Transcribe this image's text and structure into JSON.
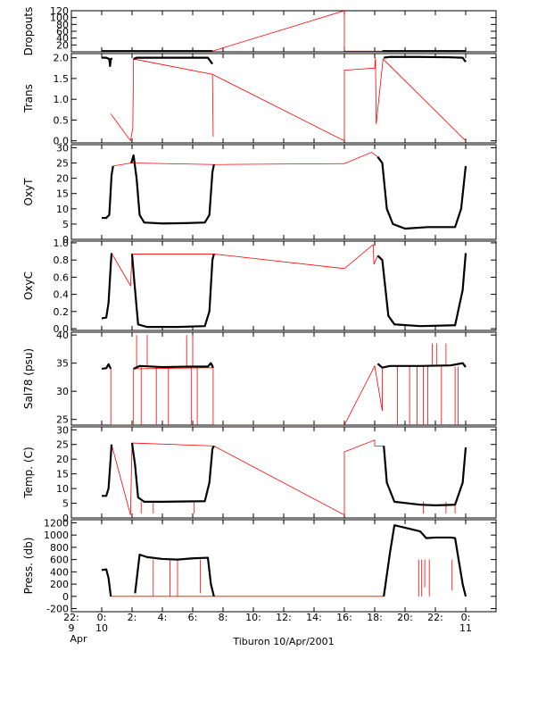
{
  "chart_data": {
    "type": "line",
    "title": "",
    "xlabel": "Tiburon 10/Apr/2001",
    "x_tick_hours": [
      -2,
      0,
      2,
      4,
      6,
      8,
      10,
      12,
      14,
      16,
      18,
      20,
      22,
      24
    ],
    "x_tick_labels": [
      [
        "22:",
        "9",
        "Apr"
      ],
      [
        "0:",
        "10",
        ""
      ],
      [
        "2:",
        "",
        ""
      ],
      [
        "4:",
        "",
        ""
      ],
      [
        "6:",
        "",
        ""
      ],
      [
        "8:",
        "",
        ""
      ],
      [
        "10:",
        "",
        ""
      ],
      [
        "12:",
        "",
        ""
      ],
      [
        "14:",
        "",
        ""
      ],
      [
        "16:",
        "",
        ""
      ],
      [
        "18:",
        "",
        ""
      ],
      [
        "20:",
        "",
        ""
      ],
      [
        "22:",
        "",
        ""
      ],
      [
        "0:",
        "11",
        ""
      ]
    ],
    "xlim_hours": [
      -2,
      26
    ],
    "colors": {
      "black_series": "#000000",
      "red_series": "#ff0000",
      "axes": "#000000"
    },
    "panels": [
      {
        "id": "dropouts",
        "ylabel": "Dropouts",
        "yticks": [
          20,
          40,
          60,
          80,
          100,
          120
        ],
        "ytick_labels": [
          "20",
          "40",
          "60",
          "80",
          "100",
          "120"
        ],
        "ylim": [
          0,
          120
        ],
        "black": [
          [
            0,
            2
          ],
          [
            2,
            2
          ],
          [
            2,
            2
          ],
          [
            7.3,
            2
          ],
          [
            18.5,
            2
          ],
          [
            24,
            2
          ]
        ],
        "black_segments": [
          [
            [
              0,
              2
            ],
            [
              7.3,
              2
            ]
          ],
          [
            [
              18.5,
              2
            ],
            [
              24,
              2
            ]
          ]
        ],
        "red": [
          [
            0,
            2
          ],
          [
            7.3,
            2
          ],
          [
            16,
            120
          ],
          [
            16,
            2
          ],
          [
            24,
            2
          ]
        ]
      },
      {
        "id": "trans",
        "ylabel": "Trans",
        "yticks": [
          0.0,
          0.5,
          1.0,
          1.5,
          2.0
        ],
        "ytick_labels": [
          "0.0",
          "0.5",
          "1.0",
          "1.5",
          "2.0"
        ],
        "ylim": [
          -0.05,
          2.1
        ],
        "black_segments": [
          [
            [
              0,
              2.0
            ],
            [
              0.3,
              2.0
            ],
            [
              0.5,
              1.97
            ],
            [
              0.55,
              1.8
            ],
            [
              0.6,
              1.97
            ],
            [
              0.7,
              1.98
            ]
          ],
          [
            [
              2.1,
              1.97
            ],
            [
              2.3,
              2.0
            ],
            [
              4,
              2.0
            ],
            [
              6,
              2.0
            ],
            [
              7.0,
              2.0
            ],
            [
              7.2,
              1.9
            ],
            [
              7.3,
              1.85
            ]
          ],
          [
            [
              18.6,
              2.0
            ],
            [
              19,
              2.02
            ],
            [
              21,
              2.02
            ],
            [
              23,
              2.01
            ],
            [
              23.8,
              2.0
            ],
            [
              24,
              1.9
            ]
          ]
        ],
        "red": [
          [
            0.6,
            0.65
          ],
          [
            1.9,
            0.0
          ],
          [
            2.05,
            0.3
          ],
          [
            2.1,
            1.97
          ],
          [
            7.3,
            1.6
          ],
          [
            7.35,
            0.1
          ],
          [
            7.3,
            1.6
          ],
          [
            16,
            0.0
          ],
          [
            16,
            1.7
          ],
          [
            18.0,
            1.75
          ],
          [
            18.05,
            2.0
          ],
          [
            18.1,
            0.4
          ],
          [
            18.55,
            1.97
          ],
          [
            24,
            0.0
          ]
        ]
      },
      {
        "id": "oxyt",
        "ylabel": "OxyT",
        "yticks": [
          0,
          5,
          10,
          15,
          20,
          25,
          30
        ],
        "ytick_labels": [
          "0",
          "5",
          "10",
          "15",
          "20",
          "25",
          "30"
        ],
        "ylim": [
          0,
          31
        ],
        "black_segments": [
          [
            [
              0,
              7
            ],
            [
              0.3,
              7
            ],
            [
              0.5,
              8
            ],
            [
              0.65,
              21
            ],
            [
              0.75,
              24
            ]
          ],
          [
            [
              1.95,
              25
            ],
            [
              2.1,
              27.5
            ],
            [
              2.3,
              20
            ],
            [
              2.5,
              8
            ],
            [
              2.8,
              5.5
            ],
            [
              4,
              5.2
            ],
            [
              5.5,
              5.3
            ],
            [
              6.8,
              5.5
            ],
            [
              7.1,
              8
            ],
            [
              7.3,
              22
            ],
            [
              7.4,
              24.5
            ]
          ],
          [
            [
              18.2,
              27
            ],
            [
              18.5,
              25
            ],
            [
              18.8,
              10
            ],
            [
              19.2,
              5
            ],
            [
              20,
              3.5
            ],
            [
              21.5,
              4
            ],
            [
              22,
              4
            ],
            [
              23.3,
              4
            ],
            [
              23.7,
              10
            ],
            [
              24,
              24
            ]
          ]
        ],
        "red": [
          [
            0.75,
            24
          ],
          [
            1.95,
            25
          ],
          [
            7.4,
            24.5
          ],
          [
            16,
            24.8
          ],
          [
            17.8,
            28.5
          ],
          [
            18.2,
            27
          ]
        ]
      },
      {
        "id": "oxyc",
        "ylabel": "OxyC",
        "yticks": [
          0.0,
          0.2,
          0.4,
          0.6,
          0.8,
          1.0
        ],
        "ytick_labels": [
          "0.0",
          "0.2",
          "0.4",
          "0.6",
          "0.8",
          "1.0"
        ],
        "ylim": [
          -0.02,
          1.02
        ],
        "black_segments": [
          [
            [
              0,
              0.12
            ],
            [
              0.3,
              0.13
            ],
            [
              0.45,
              0.3
            ],
            [
              0.6,
              0.75
            ],
            [
              0.65,
              0.88
            ]
          ],
          [
            [
              2.0,
              0.87
            ],
            [
              2.15,
              0.55
            ],
            [
              2.4,
              0.05
            ],
            [
              3,
              0.02
            ],
            [
              5,
              0.02
            ],
            [
              6.8,
              0.03
            ],
            [
              7.1,
              0.2
            ],
            [
              7.3,
              0.8
            ],
            [
              7.4,
              0.87
            ]
          ],
          [
            [
              18.2,
              0.85
            ],
            [
              18.5,
              0.8
            ],
            [
              18.9,
              0.15
            ],
            [
              19.3,
              0.05
            ],
            [
              21,
              0.03
            ],
            [
              23.3,
              0.04
            ],
            [
              23.8,
              0.45
            ],
            [
              24,
              0.88
            ]
          ]
        ],
        "red": [
          [
            0.65,
            0.88
          ],
          [
            1.9,
            0.5
          ],
          [
            2.0,
            0.87
          ],
          [
            7.4,
            0.87
          ],
          [
            16,
            0.7
          ],
          [
            17.9,
            0.98
          ],
          [
            17.95,
            0.75
          ],
          [
            18.2,
            0.85
          ]
        ]
      },
      {
        "id": "sal78",
        "ylabel": "Sal78 (psu)",
        "yticks": [
          25,
          30,
          35,
          40
        ],
        "ytick_labels": [
          "25",
          "30",
          "35",
          "40"
        ],
        "ylim": [
          24,
          40.5
        ],
        "black_segments": [
          [
            [
              0,
              34
            ],
            [
              0.3,
              34.1
            ],
            [
              0.45,
              34.8
            ],
            [
              0.6,
              34
            ]
          ],
          [
            [
              2.1,
              34
            ],
            [
              2.5,
              34.5
            ],
            [
              4,
              34.3
            ],
            [
              6,
              34.4
            ],
            [
              7.0,
              34.4
            ],
            [
              7.2,
              35
            ],
            [
              7.35,
              34.2
            ]
          ],
          [
            [
              18.2,
              34.9
            ],
            [
              18.5,
              34.2
            ],
            [
              19,
              34.5
            ],
            [
              21,
              34.5
            ],
            [
              23,
              34.6
            ],
            [
              23.8,
              35
            ],
            [
              24,
              34.3
            ]
          ]
        ],
        "red": [
          [
            0.6,
            34
          ],
          [
            0.6,
            24
          ],
          [
            2.1,
            24
          ],
          [
            2.1,
            34
          ],
          [
            7.35,
            34.2
          ],
          [
            7.35,
            24
          ],
          [
            16,
            24
          ],
          [
            18.0,
            34.5
          ],
          [
            18.5,
            26.5
          ],
          [
            18.5,
            34.2
          ]
        ],
        "red_spikes": [
          [
            2.3,
            40
          ],
          [
            2.6,
            24
          ],
          [
            3.0,
            40
          ],
          [
            3.6,
            24
          ],
          [
            4.4,
            24
          ],
          [
            5.6,
            40
          ],
          [
            5.9,
            24
          ],
          [
            6.0,
            40
          ],
          [
            6.3,
            24
          ],
          [
            19.5,
            24
          ],
          [
            20.3,
            24
          ],
          [
            20.8,
            24
          ],
          [
            21.2,
            24
          ],
          [
            21.5,
            24
          ],
          [
            21.8,
            38.5
          ],
          [
            22.1,
            38.5
          ],
          [
            22.4,
            24
          ],
          [
            22.7,
            38.5
          ],
          [
            23.3,
            24
          ],
          [
            23.5,
            24
          ]
        ]
      },
      {
        "id": "temp",
        "ylabel": "Temp. (C)",
        "yticks": [
          0,
          5,
          10,
          15,
          20,
          25,
          30
        ],
        "ytick_labels": [
          "0",
          "5",
          "10",
          "15",
          "20",
          "25",
          "30"
        ],
        "ylim": [
          0,
          31
        ],
        "black_segments": [
          [
            [
              0,
              7.5
            ],
            [
              0.3,
              7.5
            ],
            [
              0.45,
              10
            ],
            [
              0.6,
              21
            ],
            [
              0.65,
              25
            ]
          ],
          [
            [
              2.0,
              25.5
            ],
            [
              2.2,
              18
            ],
            [
              2.4,
              7
            ],
            [
              2.8,
              5.5
            ],
            [
              4,
              5.5
            ],
            [
              6.8,
              5.7
            ],
            [
              7.1,
              12
            ],
            [
              7.3,
              23.5
            ],
            [
              7.4,
              24.5
            ]
          ],
          [
            [
              18.6,
              24.5
            ],
            [
              18.8,
              12
            ],
            [
              19.3,
              5.5
            ],
            [
              21,
              4.5
            ],
            [
              22,
              4.3
            ],
            [
              23.3,
              4.5
            ],
            [
              23.8,
              12
            ],
            [
              24,
              24
            ]
          ]
        ],
        "red": [
          [
            0.65,
            25
          ],
          [
            1.9,
            1.0
          ],
          [
            2.0,
            25.5
          ],
          [
            7.4,
            24.5
          ],
          [
            16,
            1.0
          ],
          [
            16,
            22.5
          ],
          [
            18,
            26.5
          ],
          [
            18,
            24.5
          ],
          [
            18.6,
            24.5
          ]
        ],
        "red_spikes": [
          [
            2.6,
            1.5
          ],
          [
            3.4,
            1.5
          ],
          [
            6.1,
            1.5
          ],
          [
            21.2,
            1.5
          ],
          [
            22.7,
            1.5
          ],
          [
            23.3,
            1.5
          ]
        ]
      },
      {
        "id": "press",
        "ylabel": "Press. (db)",
        "yticks": [
          -200,
          0,
          200,
          400,
          600,
          800,
          1000,
          1200
        ],
        "ytick_labels": [
          "-200",
          "0",
          "200",
          "400",
          "600",
          "800",
          "1000",
          "1200"
        ],
        "ylim": [
          -250,
          1250
        ],
        "black_segments": [
          [
            [
              0,
              430
            ],
            [
              0.3,
              440
            ],
            [
              0.45,
              300
            ],
            [
              0.6,
              0
            ]
          ],
          [
            [
              2.2,
              50
            ],
            [
              2.5,
              680
            ],
            [
              3,
              640
            ],
            [
              4,
              610
            ],
            [
              5,
              600
            ],
            [
              6,
              620
            ],
            [
              7.0,
              630
            ],
            [
              7.2,
              200
            ],
            [
              7.4,
              0
            ]
          ],
          [
            [
              18.6,
              0
            ],
            [
              19.0,
              700
            ],
            [
              19.3,
              1160
            ],
            [
              20,
              1120
            ],
            [
              21,
              1060
            ],
            [
              21.4,
              950
            ],
            [
              22,
              960
            ],
            [
              23,
              960
            ],
            [
              23.3,
              950
            ],
            [
              23.8,
              200
            ],
            [
              24,
              0
            ]
          ]
        ],
        "red": [
          [
            0.6,
            0
          ],
          [
            2.2,
            0
          ],
          [
            7.4,
            0
          ],
          [
            16,
            0
          ],
          [
            18.6,
            0
          ]
        ],
        "red_spikes": [
          [
            3.4,
            0
          ],
          [
            4.5,
            0
          ],
          [
            5.0,
            0
          ],
          [
            6.5,
            50
          ],
          [
            20.9,
            0
          ],
          [
            21.1,
            0
          ],
          [
            21.3,
            150
          ],
          [
            21.6,
            0
          ],
          [
            23.1,
            100
          ]
        ]
      }
    ]
  }
}
